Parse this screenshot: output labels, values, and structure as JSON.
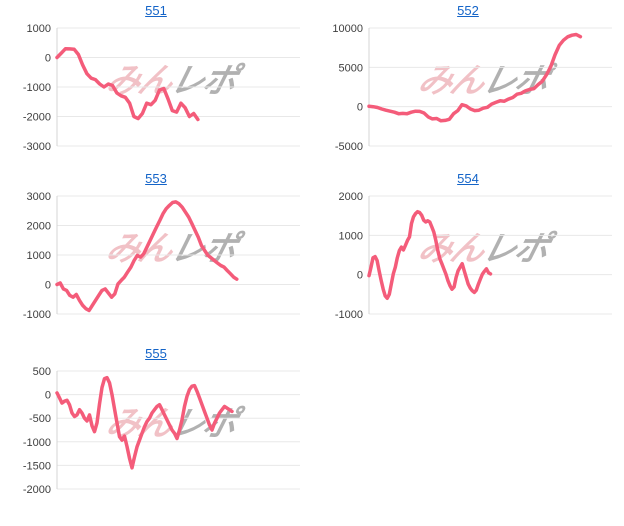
{
  "page": {
    "background": "#ffffff"
  },
  "colors": {
    "line": "#f45c7a",
    "grid": "#e8e8e8",
    "axis": "#d4d4d4",
    "tick_text": "#3f3f3f",
    "link": "#1464c8",
    "watermark_pink": "#e78f99",
    "watermark_gray": "#9e9e9e"
  },
  "watermark": {
    "part1": "みん",
    "part2": "レポ"
  },
  "chart_data": [
    {
      "type": "line",
      "title": "551",
      "ylabel": "",
      "xlabel": "",
      "ylim": [
        -3000,
        1000
      ],
      "yticks": [
        1000,
        0,
        -1000,
        -2000,
        -3000
      ],
      "grid": true,
      "legend": "none",
      "span": 0.58,
      "values": [
        0,
        150,
        300,
        290,
        280,
        100,
        -250,
        -550,
        -700,
        -750,
        -900,
        -1000,
        -900,
        -950,
        -1200,
        -1300,
        -1350,
        -1550,
        -2000,
        -2070,
        -1900,
        -1550,
        -1600,
        -1450,
        -1100,
        -1050,
        -1400,
        -1800,
        -1850,
        -1550,
        -1700,
        -2000,
        -1900,
        -2100
      ]
    },
    {
      "type": "line",
      "title": "552",
      "ylabel": "",
      "xlabel": "",
      "ylim": [
        -5000,
        10000
      ],
      "yticks": [
        10000,
        5000,
        0,
        -5000
      ],
      "grid": true,
      "legend": "none",
      "span": 0.87,
      "values": [
        50,
        0,
        -100,
        -300,
        -450,
        -580,
        -700,
        -900,
        -850,
        -900,
        -700,
        -580,
        -600,
        -800,
        -1300,
        -1550,
        -1500,
        -1800,
        -1750,
        -1600,
        -900,
        -500,
        250,
        100,
        -300,
        -500,
        -450,
        -200,
        -80,
        330,
        540,
        750,
        700,
        960,
        1170,
        1580,
        1700,
        2000,
        2200,
        2300,
        2800,
        3250,
        4080,
        5100,
        6580,
        7800,
        8450,
        8875,
        9080,
        9170,
        8900
      ]
    },
    {
      "type": "line",
      "title": "553",
      "ylabel": "",
      "xlabel": "",
      "ylim": [
        -1000,
        3000
      ],
      "yticks": [
        3000,
        2000,
        1000,
        0,
        -1000
      ],
      "grid": true,
      "legend": "none",
      "span": 0.74,
      "values": [
        0,
        50,
        -150,
        -200,
        -370,
        -430,
        -340,
        -540,
        -710,
        -820,
        -880,
        -710,
        -540,
        -370,
        -200,
        -150,
        -290,
        -430,
        -320,
        20,
        140,
        250,
        420,
        590,
        815,
        985,
        930,
        1040,
        1265,
        1490,
        1720,
        1945,
        2170,
        2400,
        2570,
        2680,
        2780,
        2800,
        2735,
        2620,
        2455,
        2285,
        2060,
        1830,
        1600,
        1320,
        1150,
        985,
        905,
        815,
        725,
        645,
        590,
        475,
        365,
        250,
        180
      ]
    },
    {
      "type": "line",
      "title": "554",
      "ylabel": "",
      "xlabel": "",
      "ylim": [
        -1000,
        2000
      ],
      "yticks": [
        2000,
        1000,
        0,
        -1000
      ],
      "grid": true,
      "legend": "none",
      "span": 0.5,
      "values": [
        -25,
        190,
        430,
        460,
        360,
        100,
        -150,
        -370,
        -540,
        -600,
        -500,
        -240,
        20,
        190,
        430,
        615,
        700,
        630,
        745,
        870,
        960,
        1300,
        1470,
        1555,
        1600,
        1580,
        1510,
        1385,
        1340,
        1370,
        1340,
        1215,
        1085,
        870,
        615,
        400,
        275,
        145,
        15,
        -155,
        -280,
        -370,
        -310,
        -70,
        100,
        190,
        280,
        100,
        -70,
        -240,
        -345,
        -410,
        -450,
        -395,
        -240,
        -110,
        15,
        85,
        150,
        50,
        20
      ]
    },
    {
      "type": "line",
      "title": "555",
      "ylabel": "",
      "xlabel": "",
      "ylim": [
        -2000,
        500
      ],
      "yticks": [
        500,
        0,
        -500,
        -1000,
        -1500,
        -2000
      ],
      "grid": true,
      "legend": "none",
      "span": 0.72,
      "values": [
        35,
        -70,
        -180,
        -140,
        -120,
        -215,
        -390,
        -465,
        -430,
        -320,
        -390,
        -500,
        -560,
        -430,
        -660,
        -785,
        -600,
        -200,
        150,
        340,
        357,
        250,
        0,
        -300,
        -600,
        -893,
        -965,
        -880,
        -1100,
        -1350,
        -1550,
        -1320,
        -1107,
        -965,
        -820,
        -680,
        -570,
        -500,
        -390,
        -320,
        -250,
        -215,
        -320,
        -430,
        -535,
        -645,
        -750,
        -820,
        -930,
        -750,
        -535,
        -250,
        -35,
        107,
        178,
        190,
        70,
        -70,
        -215,
        -357,
        -500,
        -645,
        -750,
        -605,
        -500,
        -390,
        -320,
        -250,
        -285,
        -320,
        -355
      ]
    }
  ]
}
